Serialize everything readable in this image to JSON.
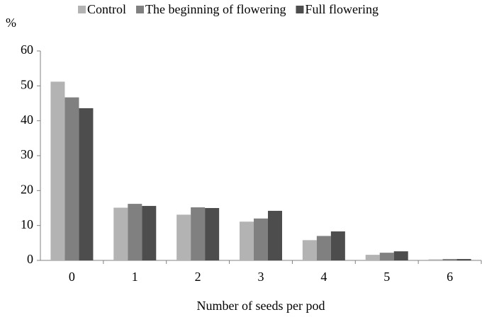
{
  "chart_data": {
    "type": "bar",
    "y_label": "%",
    "x_label": "Number of seeds per pod",
    "categories": [
      "0",
      "1",
      "2",
      "3",
      "4",
      "5",
      "6"
    ],
    "series": [
      {
        "name": "Control",
        "color": "#b3b3b3",
        "values": [
          51.2,
          15.1,
          13.1,
          11.1,
          5.8,
          1.6,
          0.3
        ]
      },
      {
        "name": "The beginning of flowering",
        "color": "#808080",
        "values": [
          46.7,
          16.2,
          15.2,
          12.0,
          7.0,
          2.2,
          0.4
        ]
      },
      {
        "name": "Full flowering",
        "color": "#4d4d4d",
        "values": [
          43.6,
          15.6,
          15.0,
          14.2,
          8.3,
          2.6,
          0.4
        ]
      }
    ],
    "ylim": [
      0,
      60
    ],
    "yticks": [
      0,
      10,
      20,
      30,
      40,
      50,
      60
    ],
    "legend": "top"
  }
}
